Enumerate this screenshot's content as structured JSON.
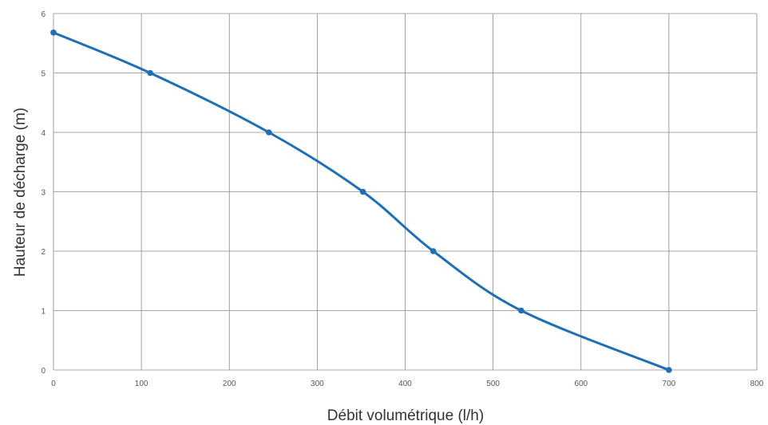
{
  "chart_data": {
    "type": "line",
    "title": "",
    "xlabel": "Débit volumétrique (l/h)",
    "ylabel": "Hauteur de décharge (m)",
    "xlim": [
      0,
      800
    ],
    "ylim": [
      0,
      6
    ],
    "xticks": [
      0,
      100,
      200,
      300,
      400,
      500,
      600,
      700,
      800
    ],
    "yticks": [
      0,
      1,
      2,
      3,
      4,
      5,
      6
    ],
    "grid": true,
    "legend": "none",
    "series": [
      {
        "color": "#1f6fb4",
        "x": [
          0,
          110,
          245,
          352,
          432,
          532,
          700
        ],
        "y": [
          5.68,
          5.0,
          4.0,
          3.0,
          2.0,
          1.0,
          0.0
        ]
      }
    ]
  }
}
